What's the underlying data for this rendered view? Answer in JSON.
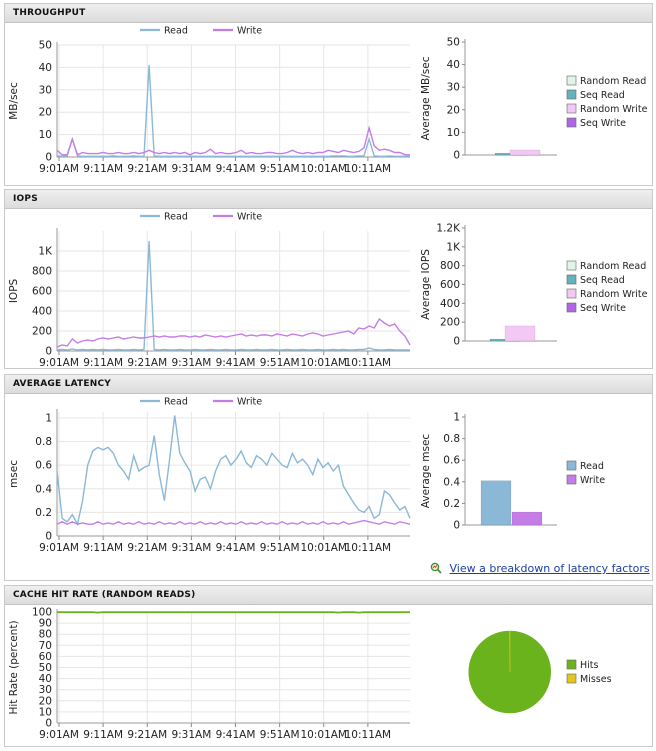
{
  "panels": [
    {
      "id": "throughput",
      "title": "THROUGHPUT"
    },
    {
      "id": "iops",
      "title": "IOPS"
    },
    {
      "id": "latency",
      "title": "AVERAGE LATENCY"
    },
    {
      "id": "cache",
      "title": "CACHE HIT RATE (RANDOM READS)"
    }
  ],
  "latency_link": {
    "label": "View a breakdown of latency factors"
  },
  "colors": {
    "read": "#8ab8d6",
    "write": "#c47ce6",
    "random_read": "#dff5e6",
    "seq_read": "#64b2bb",
    "random_write": "#f2c8f4",
    "seq_write": "#b066e4",
    "hits": "#6bb31c",
    "misses": "#e4c41e"
  },
  "chart_data": [
    {
      "type": "line",
      "id": "throughput_line",
      "legend": [
        "Read",
        "Write"
      ],
      "ylabel": "MB/sec",
      "ylim": [
        0,
        50
      ],
      "yticks": [
        0,
        10,
        20,
        30,
        40,
        50
      ],
      "xticks": [
        "9:01AM",
        "9:11AM",
        "9:21AM",
        "9:31AM",
        "9:41AM",
        "9:51AM",
        "10:01AM",
        "10:11AM"
      ],
      "series": [
        {
          "name": "Read",
          "values": [
            0.5,
            0.3,
            0.5,
            8,
            0.5,
            0.3,
            0.3,
            0.3,
            0.3,
            0.3,
            0.3,
            0.5,
            0.3,
            0.3,
            0.3,
            0.5,
            0.3,
            0.3,
            41,
            0.5,
            0.3,
            0.3,
            0.3,
            0.3,
            0.3,
            0.3,
            0.3,
            0.3,
            0.3,
            0.3,
            0.3,
            0.3,
            0.3,
            0.3,
            0.3,
            0.3,
            0.3,
            0.3,
            0.3,
            0.3,
            0.3,
            0.3,
            0.3,
            0.3,
            0.3,
            0.3,
            0.3,
            0.3,
            0.3,
            0.3,
            0.3,
            0.3,
            0.3,
            0.3,
            0.5,
            0.5,
            0.5,
            0.3,
            0.3,
            0.5,
            0.5,
            8,
            0.5,
            0.3,
            0.3,
            0.5,
            0.3,
            0.3,
            0.3,
            0.3
          ]
        },
        {
          "name": "Write",
          "values": [
            3,
            1,
            1,
            8,
            1,
            2,
            1.5,
            1.5,
            1.5,
            2,
            1.5,
            1.5,
            2,
            1.5,
            1.5,
            2,
            1.5,
            2,
            3,
            2,
            1.5,
            2,
            1.5,
            2,
            1.5,
            2,
            1,
            2,
            1.5,
            2,
            3.5,
            1.5,
            2,
            1.5,
            1.5,
            2,
            3,
            1.5,
            2,
            1.5,
            1.5,
            2,
            2,
            1.5,
            1.5,
            2,
            3,
            2,
            1.5,
            2,
            1.5,
            2,
            2,
            3,
            2.5,
            2,
            3,
            2.5,
            2,
            2.5,
            4,
            13,
            5,
            3,
            3.5,
            3,
            2,
            2,
            1,
            1
          ]
        }
      ]
    },
    {
      "type": "bar",
      "id": "throughput_avg",
      "legend": [
        "Random Read",
        "Seq Read",
        "Random Write",
        "Seq Write"
      ],
      "ylabel": "Average MB/sec",
      "ylim": [
        0,
        50
      ],
      "yticks": [
        0,
        10,
        20,
        30,
        40,
        50
      ],
      "values": [
        0,
        0.8,
        2.2,
        0
      ]
    },
    {
      "type": "line",
      "id": "iops_line",
      "legend": [
        "Read",
        "Write"
      ],
      "ylabel": "IOPS",
      "ylim": [
        0,
        1200
      ],
      "yticks": [
        "0",
        "200",
        "400",
        "600",
        "800",
        "1K"
      ],
      "ytick_values": [
        0,
        200,
        400,
        600,
        800,
        1000
      ],
      "xticks": [
        "9:01AM",
        "9:11AM",
        "9:21AM",
        "9:31AM",
        "9:41AM",
        "9:51AM",
        "10:01AM",
        "10:11AM"
      ],
      "series": [
        {
          "name": "Read",
          "values": [
            10,
            15,
            10,
            20,
            10,
            15,
            10,
            15,
            10,
            15,
            10,
            10,
            15,
            10,
            10,
            15,
            10,
            15,
            1100,
            15,
            10,
            15,
            10,
            10,
            15,
            10,
            10,
            15,
            10,
            10,
            15,
            10,
            10,
            15,
            10,
            10,
            15,
            10,
            10,
            15,
            10,
            10,
            15,
            10,
            10,
            15,
            10,
            10,
            15,
            10,
            10,
            15,
            10,
            10,
            15,
            10,
            15,
            10,
            10,
            15,
            15,
            30,
            15,
            10,
            10,
            15,
            10,
            10,
            10,
            10
          ]
        },
        {
          "name": "Write",
          "values": [
            40,
            60,
            50,
            120,
            80,
            100,
            110,
            100,
            120,
            130,
            120,
            130,
            140,
            120,
            130,
            140,
            130,
            130,
            140,
            150,
            140,
            150,
            140,
            140,
            150,
            150,
            140,
            150,
            140,
            160,
            150,
            140,
            150,
            140,
            150,
            160,
            170,
            150,
            160,
            150,
            160,
            160,
            150,
            170,
            160,
            150,
            170,
            160,
            150,
            170,
            180,
            170,
            150,
            160,
            170,
            180,
            190,
            200,
            170,
            230,
            220,
            250,
            230,
            320,
            280,
            250,
            270,
            200,
            150,
            60
          ]
        }
      ]
    },
    {
      "type": "bar",
      "id": "iops_avg",
      "legend": [
        "Random Read",
        "Seq Read",
        "Random Write",
        "Seq Write"
      ],
      "ylabel": "Average IOPS",
      "ylim": [
        0,
        1200
      ],
      "yticks": [
        "0",
        "200",
        "400",
        "600",
        "800",
        "1K",
        "1.2K"
      ],
      "ytick_values": [
        0,
        200,
        400,
        600,
        800,
        1000,
        1200
      ],
      "values": [
        0,
        20,
        160,
        0
      ]
    },
    {
      "type": "line",
      "id": "latency_line",
      "legend": [
        "Read",
        "Write"
      ],
      "ylabel": "msec",
      "ylim": [
        0,
        1.05
      ],
      "yticks": [
        "0",
        "0.2",
        "0.4",
        "0.6",
        "0.8",
        "1"
      ],
      "ytick_values": [
        0,
        0.2,
        0.4,
        0.6,
        0.8,
        1
      ],
      "xticks": [
        "9:01AM",
        "9:11AM",
        "9:21AM",
        "9:31AM",
        "9:41AM",
        "9:51AM",
        "10:01AM",
        "10:11AM"
      ],
      "series": [
        {
          "name": "Read",
          "values": [
            0.55,
            0.15,
            0.12,
            0.18,
            0.1,
            0.3,
            0.6,
            0.72,
            0.75,
            0.73,
            0.75,
            0.7,
            0.6,
            0.55,
            0.48,
            0.68,
            0.55,
            0.58,
            0.6,
            0.85,
            0.52,
            0.3,
            0.65,
            1.02,
            0.7,
            0.62,
            0.55,
            0.38,
            0.48,
            0.5,
            0.4,
            0.55,
            0.65,
            0.68,
            0.6,
            0.65,
            0.72,
            0.62,
            0.58,
            0.68,
            0.65,
            0.6,
            0.7,
            0.65,
            0.6,
            0.58,
            0.7,
            0.62,
            0.65,
            0.6,
            0.52,
            0.65,
            0.58,
            0.62,
            0.55,
            0.6,
            0.42,
            0.35,
            0.28,
            0.22,
            0.2,
            0.25,
            0.15,
            0.18,
            0.38,
            0.35,
            0.28,
            0.22,
            0.25,
            0.15
          ]
        },
        {
          "name": "Write",
          "values": [
            0.1,
            0.12,
            0.1,
            0.12,
            0.1,
            0.11,
            0.1,
            0.1,
            0.12,
            0.1,
            0.11,
            0.1,
            0.12,
            0.1,
            0.11,
            0.1,
            0.12,
            0.1,
            0.11,
            0.1,
            0.12,
            0.1,
            0.11,
            0.1,
            0.12,
            0.1,
            0.11,
            0.1,
            0.12,
            0.1,
            0.11,
            0.1,
            0.12,
            0.1,
            0.11,
            0.1,
            0.12,
            0.1,
            0.11,
            0.1,
            0.12,
            0.1,
            0.11,
            0.1,
            0.12,
            0.1,
            0.11,
            0.1,
            0.12,
            0.1,
            0.11,
            0.1,
            0.12,
            0.1,
            0.11,
            0.1,
            0.12,
            0.1,
            0.11,
            0.12,
            0.13,
            0.12,
            0.11,
            0.1,
            0.12,
            0.11,
            0.1,
            0.12,
            0.11,
            0.1
          ]
        }
      ]
    },
    {
      "type": "bar",
      "id": "latency_avg",
      "legend": [
        "Read",
        "Write"
      ],
      "ylabel": "Average msec",
      "ylim": [
        0,
        1
      ],
      "yticks": [
        "0",
        "0.2",
        "0.4",
        "0.6",
        "0.8",
        "1"
      ],
      "ytick_values": [
        0,
        0.2,
        0.4,
        0.6,
        0.8,
        1
      ],
      "values": [
        0.41,
        0.12
      ]
    },
    {
      "type": "line",
      "id": "cache_line",
      "legend": [],
      "ylabel": "Hit Rate (percent)",
      "ylim": [
        0,
        100
      ],
      "yticks": [
        "0",
        "10",
        "20",
        "30",
        "40",
        "50",
        "60",
        "70",
        "80",
        "90",
        "100"
      ],
      "ytick_values": [
        0,
        10,
        20,
        30,
        40,
        50,
        60,
        70,
        80,
        90,
        100
      ],
      "xticks": [
        "9:01AM",
        "9:11AM",
        "9:21AM",
        "9:31AM",
        "9:41AM",
        "9:51AM",
        "10:01AM",
        "10:11AM"
      ],
      "series": [
        {
          "name": "Hits",
          "values": [
            99.8,
            99.8,
            99.8,
            99.8,
            99.8,
            99.8,
            99.8,
            99.8,
            99.5,
            99.8,
            99.8,
            99.8,
            99.8,
            99.8,
            99.8,
            99.8,
            99.8,
            99.8,
            99.8,
            99.8,
            99.8,
            99.8,
            99.8,
            99.8,
            99.8,
            99.8,
            99.8,
            99.8,
            99.8,
            99.8,
            99.8,
            99.8,
            99.8,
            99.8,
            99.8,
            99.8,
            99.8,
            99.8,
            99.8,
            99.8,
            99.8,
            99.8,
            99.8,
            99.8,
            99.8,
            99.8,
            99.8,
            99.8,
            99.8,
            99.8,
            99.8,
            99.8,
            99.8,
            99.8,
            99.8,
            99.5,
            99.8,
            99.8,
            99.8,
            99.5,
            99.8,
            99.8,
            99.8,
            99.8,
            99.8,
            99.8,
            99.8,
            99.8,
            99.8,
            99.8
          ]
        }
      ]
    },
    {
      "type": "pie",
      "id": "cache_pie",
      "legend": [
        "Hits",
        "Misses"
      ],
      "values": [
        99.8,
        0.2
      ]
    }
  ]
}
